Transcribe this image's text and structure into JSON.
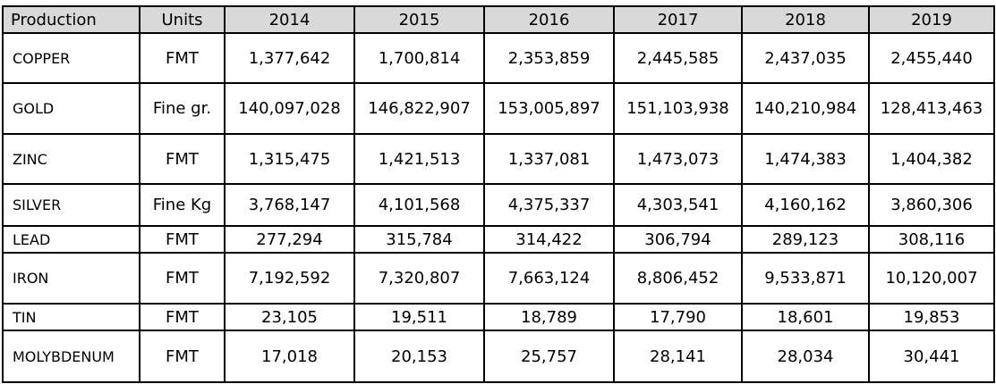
{
  "table": {
    "header": [
      "Production",
      "Units",
      "2014",
      "2015",
      "2016",
      "2017",
      "2018",
      "2019"
    ],
    "rows": [
      [
        "COPPER",
        "FMT",
        "1,377,642",
        "1,700,814",
        "2,353,859",
        "2,445,585",
        "2,437,035",
        "2,455,440"
      ],
      [
        "GOLD",
        "Fine gr.",
        "140,097,028",
        "146,822,907",
        "153,005,897",
        "151,103,938",
        "140,210,984",
        "128,413,463"
      ],
      [
        "ZINC",
        "FMT",
        "1,315,475",
        "1,421,513",
        "1,337,081",
        "1,473,073",
        "1,474,383",
        "1,404,382"
      ],
      [
        "SILVER",
        "Fine Kg",
        "3,768,147",
        "4,101,568",
        "4,375,337",
        "4,303,541",
        "4,160,162",
        "3,860,306"
      ],
      [
        "LEAD",
        "FMT",
        "277,294",
        "315,784",
        "314,422",
        "306,794",
        "289,123",
        "308,116"
      ],
      [
        "IRON",
        "FMT",
        "7,192,592",
        "7,320,807",
        "7,663,124",
        "8,806,452",
        "9,533,871",
        "10,120,007"
      ],
      [
        "TIN",
        "FMT",
        "23,105",
        "19,511",
        "18,789",
        "17,790",
        "18,601",
        "19,853"
      ],
      [
        "MOLYBDENUM",
        "FMT",
        "17,018",
        "20,153",
        "25,757",
        "28,141",
        "28,034",
        "30,441"
      ]
    ]
  }
}
